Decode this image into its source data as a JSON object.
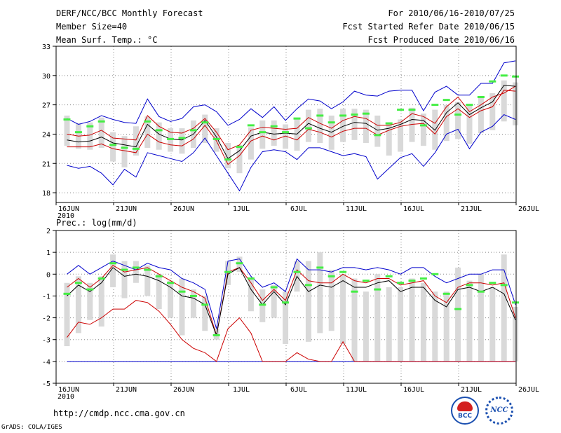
{
  "header": {
    "title": "DERF/NCC/BCC Monthly Forecast",
    "member_size": "Member Size=40",
    "variable1": "Mean Surf. Temp.: °C",
    "fcst_period": "For 2010/06/16-2010/07/25",
    "fcst_started": "Fcst Started Refer Date 2010/06/15",
    "fcst_produced": "Fcst Produced Date 2010/06/16"
  },
  "footer": {
    "url": "http://cmdp.ncc.cma.gov.cn",
    "credit": "GrADS: COLA/IGES",
    "logo1_label": "BCC",
    "logo2_label": "NCC"
  },
  "colors": {
    "bar": "#d9d9d9",
    "outer": "#0000cc",
    "inner": "#cc0000",
    "median": "#000000",
    "obs": "#44ee44",
    "grid": "#888888"
  },
  "chart_data": [
    {
      "type": "line",
      "title": "Mean Surf. Temp.: °C",
      "x_ticks": [
        {
          "day": 0,
          "label": "16JUN",
          "sub": "2010"
        },
        {
          "day": 5,
          "label": "21JUN"
        },
        {
          "day": 10,
          "label": "26JUN"
        },
        {
          "day": 15,
          "label": "1JUL"
        },
        {
          "day": 20,
          "label": "6JUL"
        },
        {
          "day": 25,
          "label": "11JUL"
        },
        {
          "day": 30,
          "label": "16JUL"
        },
        {
          "day": 35,
          "label": "21JUL"
        },
        {
          "day": 40,
          "label": "26JUL"
        }
      ],
      "xlim": [
        0,
        40
      ],
      "ylim": [
        17,
        33
      ],
      "y_ticks": [
        18,
        21,
        24,
        27,
        30,
        33
      ],
      "days": [
        0,
        1,
        2,
        3,
        4,
        5,
        6,
        7,
        8,
        9,
        10,
        11,
        12,
        13,
        14,
        15,
        16,
        17,
        18,
        19,
        20,
        21,
        22,
        23,
        24,
        25,
        26,
        27,
        28,
        29,
        30,
        31,
        32,
        33,
        34,
        35,
        36,
        37,
        38,
        39
      ],
      "box_low": [
        22.8,
        22.5,
        22.4,
        22.6,
        21.2,
        20.6,
        21.8,
        22.6,
        22.4,
        22.2,
        22.0,
        22.6,
        23.1,
        22.2,
        20.5,
        20.0,
        21.4,
        22.5,
        22.8,
        22.5,
        22.3,
        23.2,
        23.1,
        22.4,
        23.2,
        23.4,
        23.1,
        22.7,
        21.8,
        22.2,
        23.2,
        22.8,
        22.4,
        23.3,
        23.5,
        23.0,
        24.1,
        24.4,
        25.3,
        24.9
      ],
      "box_high": [
        25.9,
        25.1,
        25.2,
        25.7,
        24.2,
        23.8,
        24.8,
        25.8,
        25.2,
        24.6,
        24.6,
        25.4,
        26.0,
        24.6,
        23.1,
        22.9,
        24.7,
        25.4,
        25.4,
        25.0,
        25.6,
        26.5,
        26.6,
        25.9,
        26.6,
        26.6,
        26.5,
        25.9,
        25.2,
        25.5,
        26.7,
        26.1,
        26.5,
        27.0,
        27.3,
        27.0,
        27.8,
        28.2,
        29.5,
        29.3
      ],
      "outer_top": [
        25.6,
        25.0,
        25.3,
        25.9,
        25.5,
        25.2,
        25.1,
        27.6,
        25.8,
        25.3,
        25.6,
        26.8,
        27.0,
        26.3,
        24.9,
        25.5,
        26.6,
        25.7,
        26.8,
        25.4,
        26.6,
        27.6,
        27.4,
        26.6,
        27.3,
        28.4,
        28.0,
        27.9,
        28.4,
        28.5,
        28.5,
        26.4,
        28.3,
        28.9,
        28.0,
        28.0,
        29.2,
        29.2,
        31.3,
        31.5
      ],
      "outer_bottom": [
        20.8,
        20.5,
        20.7,
        20.0,
        18.8,
        20.4,
        19.6,
        22.1,
        21.8,
        21.5,
        21.2,
        22.1,
        23.6,
        21.8,
        20.0,
        18.2,
        20.6,
        22.2,
        22.4,
        22.2,
        21.4,
        22.6,
        22.6,
        22.2,
        21.8,
        22.0,
        21.7,
        19.4,
        20.5,
        21.6,
        22.0,
        20.7,
        22.1,
        24.0,
        24.5,
        22.5,
        24.2,
        24.8,
        26.0,
        25.5
      ],
      "inner_top": [
        24.0,
        23.8,
        23.9,
        24.4,
        23.6,
        23.5,
        23.4,
        25.9,
        24.8,
        24.2,
        24.1,
        24.6,
        25.6,
        24.2,
        22.4,
        22.9,
        24.4,
        24.7,
        24.6,
        24.5,
        24.6,
        25.7,
        25.1,
        24.6,
        25.4,
        25.8,
        25.6,
        24.9,
        24.9,
        25.2,
        26.1,
        25.8,
        25.1,
        26.8,
        27.8,
        26.3,
        27.0,
        27.8,
        28.2,
        28.9
      ],
      "inner_bottom": [
        22.7,
        22.7,
        22.7,
        23.0,
        22.5,
        22.3,
        22.1,
        24.0,
        23.2,
        22.9,
        22.8,
        23.5,
        24.9,
        23.3,
        20.9,
        21.8,
        23.3,
        23.8,
        23.4,
        23.8,
        23.4,
        24.5,
        24.2,
        23.7,
        24.3,
        24.6,
        24.6,
        23.9,
        24.4,
        24.8,
        25.0,
        25.1,
        24.0,
        25.8,
        26.6,
        25.7,
        26.4,
        26.8,
        28.5,
        28.4
      ],
      "median": [
        23.4,
        23.2,
        23.3,
        23.7,
        23.1,
        22.9,
        22.7,
        25.0,
        24.0,
        23.5,
        23.4,
        24.0,
        25.4,
        23.7,
        21.5,
        22.3,
        23.8,
        24.2,
        24.0,
        24.1,
        24.0,
        25.1,
        24.6,
        24.2,
        24.8,
        25.2,
        25.1,
        24.4,
        24.6,
        25.0,
        25.5,
        25.4,
        24.4,
        26.2,
        27.2,
        26.0,
        26.7,
        27.3,
        29.0,
        28.9
      ],
      "obs": [
        25.5,
        24.2,
        24.8,
        25.3,
        22.9,
        22.6,
        22.5,
        25.3,
        24.4,
        23.5,
        23.6,
        24.4,
        25.2,
        23.5,
        21.4,
        22.7,
        24.9,
        24.2,
        24.8,
        24.2,
        25.6,
        24.6,
        25.9,
        25.2,
        25.9,
        26.0,
        26.1,
        23.9,
        25.1,
        26.5,
        26.5,
        24.9,
        27.0,
        27.5,
        26.0,
        27.0,
        27.8,
        29.4,
        30.0,
        29.9
      ]
    },
    {
      "type": "line",
      "title": "Prec.: log(mm/d)",
      "x_ticks": [
        {
          "day": 0,
          "label": "16JUN",
          "sub": "2010"
        },
        {
          "day": 5,
          "label": "21JUN"
        },
        {
          "day": 10,
          "label": "26JUN"
        },
        {
          "day": 15,
          "label": "1JUL"
        },
        {
          "day": 20,
          "label": "6JUL"
        },
        {
          "day": 25,
          "label": "11JUL"
        },
        {
          "day": 30,
          "label": "16JUL"
        },
        {
          "day": 35,
          "label": "21JUL"
        },
        {
          "day": 40,
          "label": "26JUL"
        }
      ],
      "xlim": [
        0,
        40
      ],
      "ylim": [
        -5,
        2
      ],
      "y_ticks": [
        -5,
        -4,
        -3,
        -2,
        -1,
        0,
        1,
        2
      ],
      "days": [
        0,
        1,
        2,
        3,
        4,
        5,
        6,
        7,
        8,
        9,
        10,
        11,
        12,
        13,
        14,
        15,
        16,
        17,
        18,
        19,
        20,
        21,
        22,
        23,
        24,
        25,
        26,
        27,
        28,
        29,
        30,
        31,
        32,
        33,
        34,
        35,
        36,
        37,
        38,
        39
      ],
      "box_low": [
        -3.3,
        -2.7,
        -2.1,
        -2.4,
        -0.6,
        -1.1,
        -0.4,
        -1.0,
        -1.6,
        -2.0,
        -2.8,
        -2.0,
        -2.6,
        -3.0,
        -0.5,
        0.1,
        -1.7,
        -2.2,
        -2.0,
        -3.2,
        -0.8,
        -3.1,
        -2.7,
        -2.6,
        -3.2,
        -4.0,
        -4.0,
        -4.0,
        -4.0,
        -4.0,
        -4.0,
        -4.0,
        -4.0,
        -4.0,
        -4.0,
        -4.0,
        -4.0,
        -4.0,
        -4.0,
        -4.0
      ],
      "box_high": [
        -0.4,
        -0.1,
        -0.4,
        -0.1,
        0.9,
        0.6,
        0.6,
        0.4,
        0.0,
        -0.3,
        -0.2,
        -0.7,
        -1.0,
        -2.5,
        0.6,
        0.8,
        -0.2,
        -0.7,
        -0.5,
        -0.8,
        0.6,
        0.6,
        1.0,
        0.2,
        0.0,
        -0.2,
        -0.8,
        0.0,
        -0.6,
        -0.6,
        -0.2,
        -0.4,
        -0.8,
        -0.8,
        0.3,
        -0.3,
        0.0,
        -0.6,
        0.9,
        -1.5
      ],
      "outer_top": [
        0.0,
        0.4,
        0.0,
        0.3,
        0.6,
        0.4,
        0.2,
        0.5,
        0.3,
        0.2,
        -0.2,
        -0.4,
        -0.7,
        -2.5,
        0.6,
        0.7,
        -0.1,
        -0.6,
        -0.4,
        -0.8,
        0.7,
        0.2,
        0.2,
        0.1,
        0.3,
        0.3,
        0.2,
        0.3,
        0.2,
        0.0,
        0.3,
        0.3,
        -0.1,
        -0.4,
        -0.2,
        0.0,
        0.0,
        0.2,
        0.2,
        -1.4
      ],
      "outer_bottom": [
        -4.0,
        -4.0,
        -4.0,
        -4.0,
        -4.0,
        -4.0,
        -4.0,
        -4.0,
        -4.0,
        -4.0,
        -4.0,
        -4.0,
        -4.0,
        -4.0,
        -4.0,
        -4.0,
        -4.0,
        -4.0,
        -4.0,
        -4.0,
        -4.0,
        -4.0,
        -4.0,
        -4.0,
        -4.0,
        -4.0,
        -4.0,
        -4.0,
        -4.0,
        -4.0,
        -4.0,
        -4.0,
        -4.0,
        -4.0,
        -4.0,
        -4.0,
        -4.0,
        -4.0,
        -4.0,
        -4.0
      ],
      "inner_top": [
        -0.6,
        -0.2,
        -0.6,
        -0.2,
        0.4,
        0.1,
        0.2,
        0.3,
        0.0,
        -0.3,
        -0.6,
        -0.8,
        -1.1,
        -2.8,
        0.1,
        0.3,
        -0.4,
        -1.2,
        -0.7,
        -1.2,
        0.2,
        -0.3,
        -0.4,
        -0.4,
        0.0,
        -0.3,
        -0.4,
        -0.2,
        -0.2,
        -0.5,
        -0.4,
        -0.3,
        -1.0,
        -1.3,
        -0.6,
        -0.4,
        -0.4,
        -0.5,
        -0.4,
        -2.0
      ],
      "inner_bottom": [
        -2.9,
        -2.2,
        -2.3,
        -2.0,
        -1.6,
        -1.6,
        -1.2,
        -1.3,
        -1.7,
        -2.3,
        -3.0,
        -3.4,
        -3.6,
        -4.0,
        -2.5,
        -2.0,
        -2.7,
        -4.0,
        -4.0,
        -4.0,
        -3.6,
        -3.9,
        -4.0,
        -4.0,
        -3.1,
        -4.0,
        -4.0,
        -4.0,
        -4.0,
        -4.0,
        -4.0,
        -4.0,
        -4.0,
        -4.0,
        -4.0,
        -4.0,
        -4.0,
        -4.0,
        -4.0,
        -4.0
      ],
      "median": [
        -1.0,
        -0.5,
        -0.8,
        -0.4,
        0.3,
        -0.1,
        0.0,
        -0.1,
        -0.3,
        -0.6,
        -1.0,
        -1.1,
        -1.4,
        -2.8,
        0.0,
        0.3,
        -0.7,
        -1.4,
        -0.8,
        -1.4,
        -0.1,
        -0.8,
        -0.5,
        -0.6,
        -0.3,
        -0.6,
        -0.6,
        -0.4,
        -0.3,
        -0.8,
        -0.6,
        -0.6,
        -1.2,
        -1.5,
        -0.7,
        -0.6,
        -0.8,
        -0.6,
        -0.9,
        -2.1
      ],
      "obs": [
        -0.9,
        -0.4,
        -0.7,
        -0.2,
        0.5,
        0.2,
        0.3,
        0.2,
        -0.1,
        -0.4,
        -0.8,
        -1.0,
        -1.4,
        -2.8,
        0.1,
        0.5,
        -0.2,
        -1.4,
        -0.6,
        -1.3,
        0.1,
        -0.5,
        0.3,
        -0.1,
        0.1,
        -0.8,
        -0.3,
        -0.7,
        -0.1,
        -0.4,
        -0.3,
        -0.2,
        0.0,
        -0.9,
        -1.6,
        -0.5,
        -0.8,
        -0.4,
        -0.5,
        -1.3
      ]
    }
  ]
}
